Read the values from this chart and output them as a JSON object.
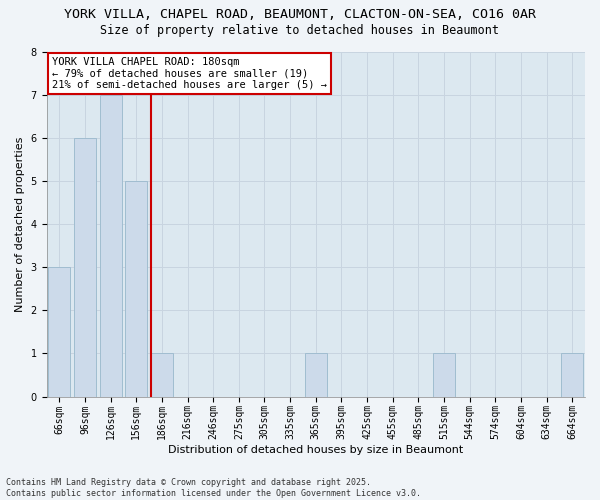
{
  "title_line1": "YORK VILLA, CHAPEL ROAD, BEAUMONT, CLACTON-ON-SEA, CO16 0AR",
  "title_line2": "Size of property relative to detached houses in Beaumont",
  "xlabel": "Distribution of detached houses by size in Beaumont",
  "ylabel": "Number of detached properties",
  "categories": [
    "66sqm",
    "96sqm",
    "126sqm",
    "156sqm",
    "186sqm",
    "216sqm",
    "246sqm",
    "275sqm",
    "305sqm",
    "335sqm",
    "365sqm",
    "395sqm",
    "425sqm",
    "455sqm",
    "485sqm",
    "515sqm",
    "544sqm",
    "574sqm",
    "604sqm",
    "634sqm",
    "664sqm"
  ],
  "values": [
    3,
    6,
    7,
    5,
    1,
    0,
    0,
    0,
    0,
    0,
    1,
    0,
    0,
    0,
    0,
    1,
    0,
    0,
    0,
    0,
    1
  ],
  "bar_color": "#ccdaea",
  "bar_edgecolor": "#a0bdd0",
  "grid_color": "#c8d4e0",
  "background_color": "#dce8f0",
  "fig_background": "#f0f4f8",
  "ylim": [
    0,
    8
  ],
  "yticks": [
    0,
    1,
    2,
    3,
    4,
    5,
    6,
    7,
    8
  ],
  "vline_index": 4,
  "vline_color": "#cc0000",
  "annotation_text": "YORK VILLA CHAPEL ROAD: 180sqm\n← 79% of detached houses are smaller (19)\n21% of semi-detached houses are larger (5) →",
  "annotation_box_color": "#cc0000",
  "footnote": "Contains HM Land Registry data © Crown copyright and database right 2025.\nContains public sector information licensed under the Open Government Licence v3.0.",
  "title_fontsize": 9.5,
  "subtitle_fontsize": 8.5,
  "axis_label_fontsize": 8,
  "tick_fontsize": 7,
  "annotation_fontsize": 7.5,
  "footnote_fontsize": 6
}
